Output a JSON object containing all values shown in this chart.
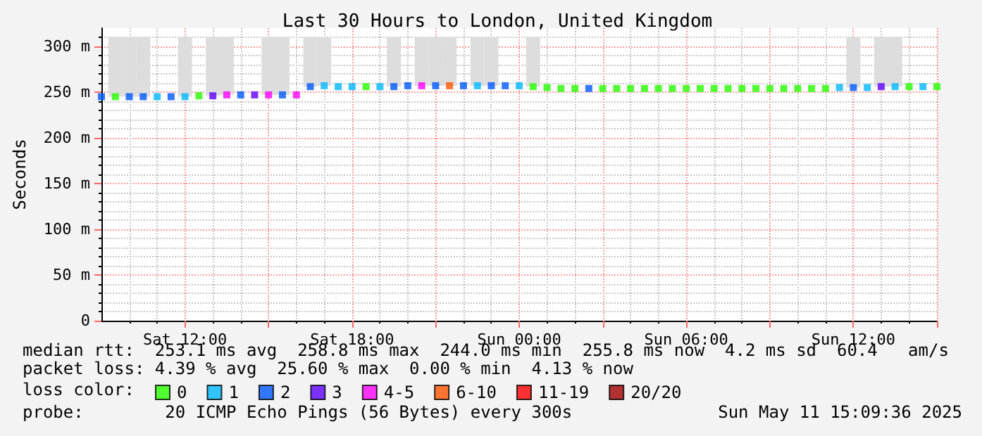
{
  "chart_data": {
    "type": "scatter",
    "title": "Last 30 Hours to London, United Kingdom",
    "ylabel": "Seconds",
    "legend_title": "loss color:",
    "legend": "bottom",
    "grid": true,
    "marker": "square",
    "xlim": [
      "2025-05-10T09:00",
      "2025-05-11T15:00"
    ],
    "xticks": [
      {
        "value": "2025-05-10T12:00",
        "label": "Sat 12:00"
      },
      {
        "value": "2025-05-10T15:00",
        "label": null
      },
      {
        "value": "2025-05-10T18:00",
        "label": "Sat 18:00"
      },
      {
        "value": "2025-05-10T21:00",
        "label": null
      },
      {
        "value": "2025-05-11T00:00",
        "label": "Sun 00:00"
      },
      {
        "value": "2025-05-11T03:00",
        "label": null
      },
      {
        "value": "2025-05-11T06:00",
        "label": "Sun 06:00"
      },
      {
        "value": "2025-05-11T09:00",
        "label": null
      },
      {
        "value": "2025-05-11T12:00",
        "label": "Sun 12:00"
      },
      {
        "value": "2025-05-11T15:00",
        "label": null
      }
    ],
    "ylim": [
      0,
      320
    ],
    "yticks": [
      0,
      {
        "value": 50,
        "label": "50 m"
      },
      {
        "value": 100,
        "label": "100 m"
      },
      {
        "value": 150,
        "label": "150 m"
      },
      {
        "value": 200,
        "label": "200 m"
      },
      {
        "value": 250,
        "label": "250 m"
      },
      {
        "value": 300,
        "label": "300 m"
      }
    ],
    "series": [
      {
        "type": "bar",
        "color": "#dddddd",
        "x": [
          "2025-05-10T09:30",
          "2025-05-10T10:00",
          "2025-05-10T10:30",
          "2025-05-10T12:00",
          "2025-05-10T13:00",
          "2025-05-10T13:30",
          "2025-05-10T15:00",
          "2025-05-10T15:30",
          "2025-05-10T16:30",
          "2025-05-10T17:00",
          "2025-05-10T19:30",
          "2025-05-10T20:30",
          "2025-05-10T21:00",
          "2025-05-10T21:30",
          "2025-05-10T22:30",
          "2025-05-10T23:00",
          "2025-05-11T00:30",
          "2025-05-11T12:00",
          "2025-05-11T13:00",
          "2025-05-11T13:30"
        ],
        "base": [
          245,
          245,
          245,
          245,
          246,
          247,
          247,
          247,
          256,
          257,
          256,
          257,
          257,
          257,
          257,
          257,
          256,
          255,
          256,
          256
        ],
        "values": [
          65,
          65,
          65,
          65,
          64,
          63,
          63,
          63,
          54,
          53,
          54,
          53,
          53,
          53,
          53,
          53,
          54,
          55,
          54,
          54
        ]
      },
      {
        "name": "0",
        "color": "#26ff00",
        "x": [
          "2025-05-10T09:30",
          "2025-05-10T12:30",
          "2025-05-10T18:30",
          "2025-05-11T00:30",
          "2025-05-11T01:00",
          "2025-05-11T01:30",
          "2025-05-11T02:00",
          "2025-05-11T03:00",
          "2025-05-11T03:30",
          "2025-05-11T04:00",
          "2025-05-11T04:30",
          "2025-05-11T05:00",
          "2025-05-11T05:30",
          "2025-05-11T06:00",
          "2025-05-11T06:30",
          "2025-05-11T07:00",
          "2025-05-11T07:30",
          "2025-05-11T08:00",
          "2025-05-11T08:30",
          "2025-05-11T09:00",
          "2025-05-11T09:30",
          "2025-05-11T10:00",
          "2025-05-11T10:30",
          "2025-05-11T11:00",
          "2025-05-11T14:00",
          "2025-05-11T15:00"
        ],
        "values": [
          245,
          246,
          256,
          256,
          255,
          254,
          254,
          254,
          254,
          254,
          254,
          254,
          254,
          254,
          254,
          254,
          254,
          254,
          254,
          254,
          254,
          254,
          254,
          254,
          256,
          256
        ]
      },
      {
        "name": "1",
        "color": "#00b8ff",
        "x": [
          "2025-05-10T11:00",
          "2025-05-10T12:00",
          "2025-05-10T17:00",
          "2025-05-10T17:30",
          "2025-05-10T18:00",
          "2025-05-10T19:00",
          "2025-05-10T22:30",
          "2025-05-11T00:00",
          "2025-05-11T11:30",
          "2025-05-11T12:30",
          "2025-05-11T13:30",
          "2025-05-11T14:30"
        ],
        "values": [
          245,
          245,
          257,
          256,
          256,
          256,
          257,
          257,
          255,
          255,
          256,
          256
        ]
      },
      {
        "name": "2",
        "color": "#0059ff",
        "x": [
          "2025-05-10T09:00",
          "2025-05-10T10:00",
          "2025-05-10T10:30",
          "2025-05-10T11:30",
          "2025-05-10T14:00",
          "2025-05-10T15:30",
          "2025-05-10T16:30",
          "2025-05-10T19:30",
          "2025-05-10T20:00",
          "2025-05-10T21:00",
          "2025-05-10T22:00",
          "2025-05-10T23:00",
          "2025-05-10T23:30",
          "2025-05-11T02:30",
          "2025-05-11T12:00"
        ],
        "values": [
          245,
          245,
          245,
          245,
          247,
          247,
          256,
          256,
          257,
          257,
          257,
          257,
          257,
          254,
          255
        ]
      },
      {
        "name": "3",
        "color": "#5e00ff",
        "x": [
          "2025-05-10T13:00",
          "2025-05-10T14:30",
          "2025-05-11T13:00"
        ],
        "values": [
          246,
          247,
          256
        ]
      },
      {
        "name": "4-5",
        "color": "#ff00fe",
        "x": [
          "2025-05-10T13:30",
          "2025-05-10T15:00",
          "2025-05-10T16:00",
          "2025-05-10T20:30"
        ],
        "values": [
          247,
          247,
          247,
          257
        ]
      },
      {
        "name": "6-10",
        "color": "#ff5500",
        "x": [
          "2025-05-10T21:30"
        ],
        "values": [
          257
        ]
      },
      {
        "name": "11-19",
        "color": "#ff0000"
      },
      {
        "name": "20/20",
        "color": "#a10000"
      }
    ],
    "annotations": [
      "median rtt:  253.1 ms avg  258.8 ms max  244.0 ms min  255.8 ms now  4.2 ms sd  60.4   am/s",
      "packet loss: 4.39 % avg  25.60 % max  0.00 % min  4.13 % now",
      "probe:        20 ICMP Echo Pings (56 Bytes) every 300s",
      "Sun May 11 15:09:36 2025"
    ]
  }
}
